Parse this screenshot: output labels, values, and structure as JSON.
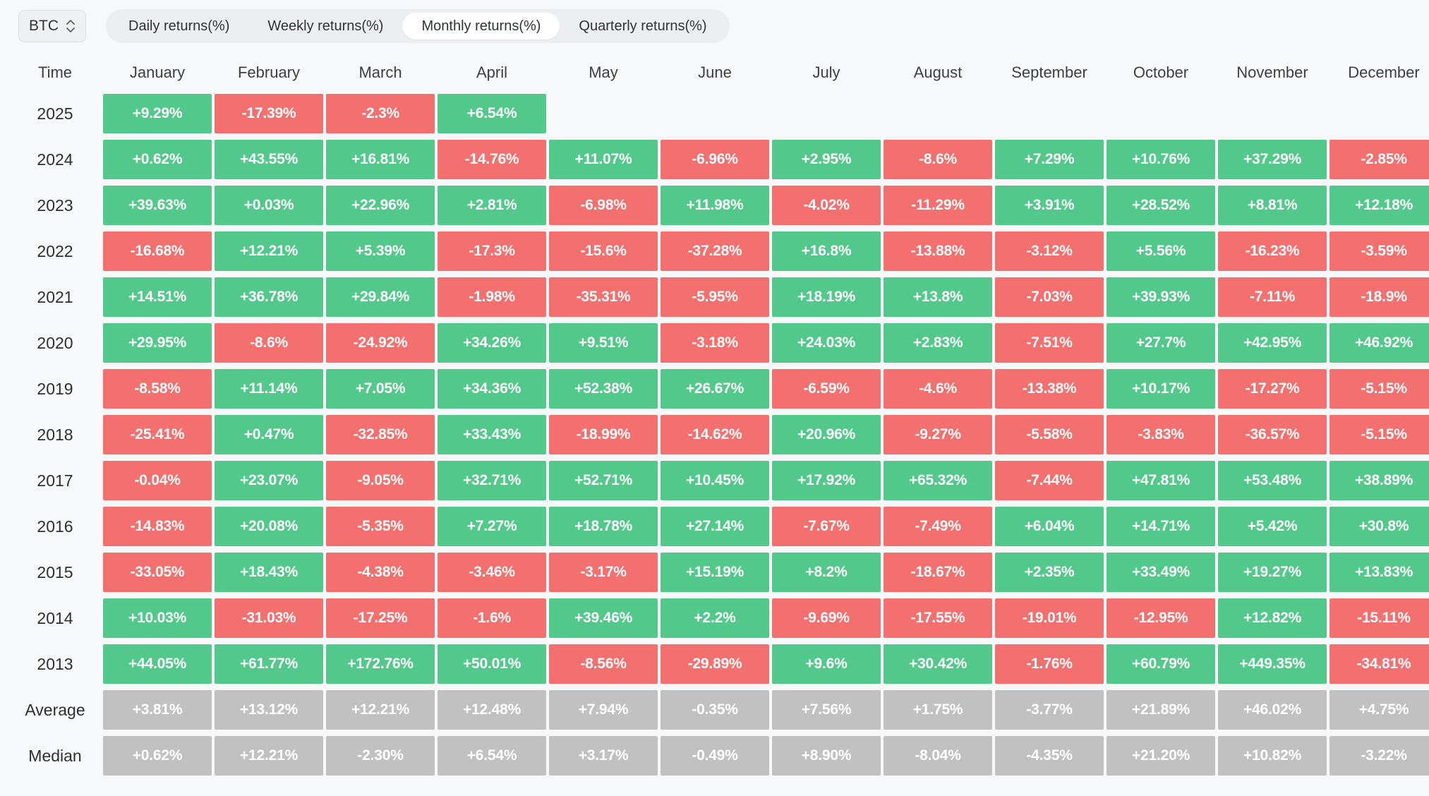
{
  "controls": {
    "symbol_select": {
      "value": "BTC",
      "icon": "up-down-chevrons"
    },
    "tabs": [
      {
        "label": "Daily returns(%)",
        "active": false
      },
      {
        "label": "Weekly returns(%)",
        "active": false
      },
      {
        "label": "Monthly returns(%)",
        "active": true
      },
      {
        "label": "Quarterly returns(%)",
        "active": false
      }
    ]
  },
  "colors": {
    "positive": "#52C98B",
    "negative": "#F4706F",
    "summary": "#C1C1C1",
    "cell_text": "#FFFFFF"
  },
  "chart_data": {
    "type": "heatmap",
    "title": "BTC Monthly returns(%)",
    "columns": [
      "Time",
      "January",
      "February",
      "March",
      "April",
      "May",
      "June",
      "July",
      "August",
      "September",
      "October",
      "November",
      "December"
    ],
    "rows": [
      {
        "label": "2025",
        "kind": "year",
        "values": [
          "+9.29%",
          "-17.39%",
          "-2.3%",
          "+6.54%",
          null,
          null,
          null,
          null,
          null,
          null,
          null,
          null
        ]
      },
      {
        "label": "2024",
        "kind": "year",
        "values": [
          "+0.62%",
          "+43.55%",
          "+16.81%",
          "-14.76%",
          "+11.07%",
          "-6.96%",
          "+2.95%",
          "-8.6%",
          "+7.29%",
          "+10.76%",
          "+37.29%",
          "-2.85%"
        ]
      },
      {
        "label": "2023",
        "kind": "year",
        "values": [
          "+39.63%",
          "+0.03%",
          "+22.96%",
          "+2.81%",
          "-6.98%",
          "+11.98%",
          "-4.02%",
          "-11.29%",
          "+3.91%",
          "+28.52%",
          "+8.81%",
          "+12.18%"
        ]
      },
      {
        "label": "2022",
        "kind": "year",
        "values": [
          "-16.68%",
          "+12.21%",
          "+5.39%",
          "-17.3%",
          "-15.6%",
          "-37.28%",
          "+16.8%",
          "-13.88%",
          "-3.12%",
          "+5.56%",
          "-16.23%",
          "-3.59%"
        ]
      },
      {
        "label": "2021",
        "kind": "year",
        "values": [
          "+14.51%",
          "+36.78%",
          "+29.84%",
          "-1.98%",
          "-35.31%",
          "-5.95%",
          "+18.19%",
          "+13.8%",
          "-7.03%",
          "+39.93%",
          "-7.11%",
          "-18.9%"
        ]
      },
      {
        "label": "2020",
        "kind": "year",
        "values": [
          "+29.95%",
          "-8.6%",
          "-24.92%",
          "+34.26%",
          "+9.51%",
          "-3.18%",
          "+24.03%",
          "+2.83%",
          "-7.51%",
          "+27.7%",
          "+42.95%",
          "+46.92%"
        ]
      },
      {
        "label": "2019",
        "kind": "year",
        "values": [
          "-8.58%",
          "+11.14%",
          "+7.05%",
          "+34.36%",
          "+52.38%",
          "+26.67%",
          "-6.59%",
          "-4.6%",
          "-13.38%",
          "+10.17%",
          "-17.27%",
          "-5.15%"
        ]
      },
      {
        "label": "2018",
        "kind": "year",
        "values": [
          "-25.41%",
          "+0.47%",
          "-32.85%",
          "+33.43%",
          "-18.99%",
          "-14.62%",
          "+20.96%",
          "-9.27%",
          "-5.58%",
          "-3.83%",
          "-36.57%",
          "-5.15%"
        ]
      },
      {
        "label": "2017",
        "kind": "year",
        "values": [
          "-0.04%",
          "+23.07%",
          "-9.05%",
          "+32.71%",
          "+52.71%",
          "+10.45%",
          "+17.92%",
          "+65.32%",
          "-7.44%",
          "+47.81%",
          "+53.48%",
          "+38.89%"
        ]
      },
      {
        "label": "2016",
        "kind": "year",
        "values": [
          "-14.83%",
          "+20.08%",
          "-5.35%",
          "+7.27%",
          "+18.78%",
          "+27.14%",
          "-7.67%",
          "-7.49%",
          "+6.04%",
          "+14.71%",
          "+5.42%",
          "+30.8%"
        ]
      },
      {
        "label": "2015",
        "kind": "year",
        "values": [
          "-33.05%",
          "+18.43%",
          "-4.38%",
          "-3.46%",
          "-3.17%",
          "+15.19%",
          "+8.2%",
          "-18.67%",
          "+2.35%",
          "+33.49%",
          "+19.27%",
          "+13.83%"
        ]
      },
      {
        "label": "2014",
        "kind": "year",
        "values": [
          "+10.03%",
          "-31.03%",
          "-17.25%",
          "-1.6%",
          "+39.46%",
          "+2.2%",
          "-9.69%",
          "-17.55%",
          "-19.01%",
          "-12.95%",
          "+12.82%",
          "-15.11%"
        ]
      },
      {
        "label": "2013",
        "kind": "year",
        "values": [
          "+44.05%",
          "+61.77%",
          "+172.76%",
          "+50.01%",
          "-8.56%",
          "-29.89%",
          "+9.6%",
          "+30.42%",
          "-1.76%",
          "+60.79%",
          "+449.35%",
          "-34.81%"
        ]
      },
      {
        "label": "Average",
        "kind": "summary",
        "values": [
          "+3.81%",
          "+13.12%",
          "+12.21%",
          "+12.48%",
          "+7.94%",
          "-0.35%",
          "+7.56%",
          "+1.75%",
          "-3.77%",
          "+21.89%",
          "+46.02%",
          "+4.75%"
        ]
      },
      {
        "label": "Median",
        "kind": "summary",
        "values": [
          "+0.62%",
          "+12.21%",
          "-2.30%",
          "+6.54%",
          "+3.17%",
          "-0.49%",
          "+8.90%",
          "-8.04%",
          "-4.35%",
          "+21.20%",
          "+10.82%",
          "-3.22%"
        ]
      }
    ]
  }
}
